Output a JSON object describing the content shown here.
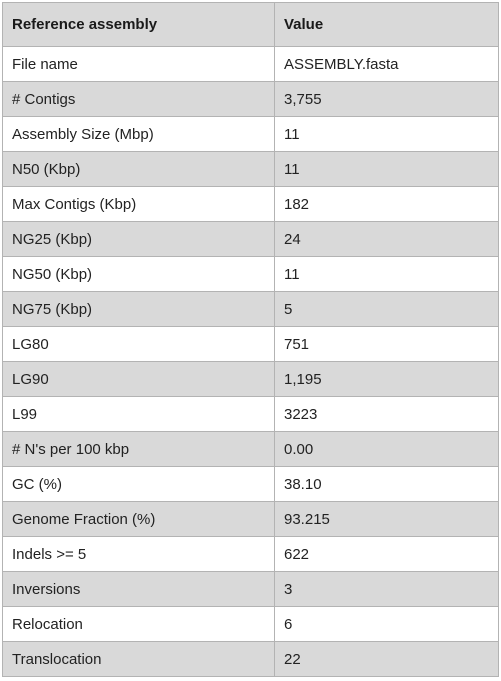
{
  "table": {
    "headers": [
      "Reference assembly",
      "Value"
    ],
    "rows": [
      [
        "File name",
        "ASSEMBLY.fasta"
      ],
      [
        "# Contigs",
        "3,755"
      ],
      [
        "Assembly Size (Mbp)",
        "11"
      ],
      [
        "N50 (Kbp)",
        "11"
      ],
      [
        "Max Contigs (Kbp)",
        "182"
      ],
      [
        "NG25 (Kbp)",
        "24"
      ],
      [
        "NG50 (Kbp)",
        "11"
      ],
      [
        "NG75 (Kbp)",
        "5"
      ],
      [
        "LG80",
        "751"
      ],
      [
        "LG90",
        "1,195"
      ],
      [
        "L99",
        "3223"
      ],
      [
        "# N's per 100 kbp",
        "0.00"
      ],
      [
        "GC (%)",
        "38.10"
      ],
      [
        "Genome Fraction (%)",
        "93.215"
      ],
      [
        "Indels >= 5",
        "622"
      ],
      [
        "Inversions",
        "3"
      ],
      [
        "Relocation",
        "6"
      ],
      [
        "Translocation",
        "22"
      ]
    ]
  },
  "colors": {
    "header_bg": "#d9d9d9",
    "stripe_bg": "#d9d9d9",
    "row_bg": "#ffffff",
    "border": "#b3b3b3"
  }
}
